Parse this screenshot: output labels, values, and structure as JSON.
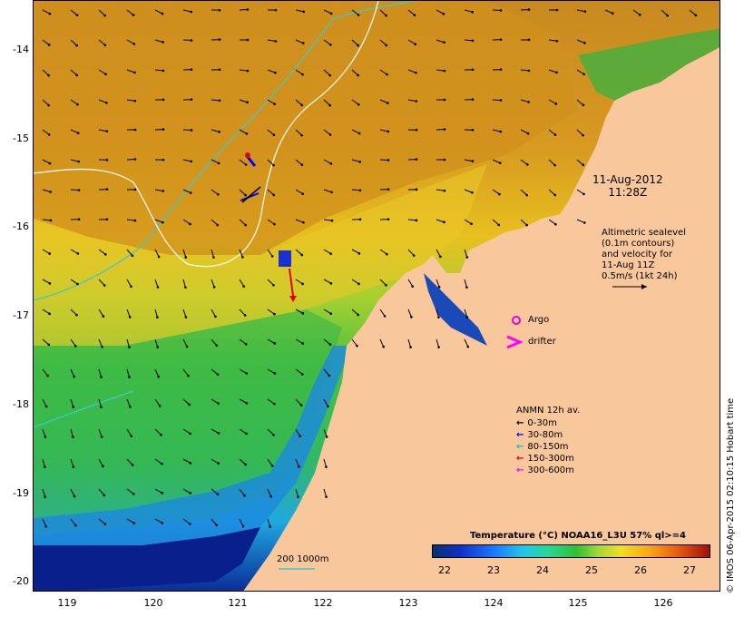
{
  "map": {
    "lat_labels": [
      "-14",
      "-15",
      "-16",
      "-17",
      "-18",
      "-19",
      "-20"
    ],
    "lon_labels": [
      "119",
      "120",
      "121",
      "122",
      "123",
      "124",
      "125",
      "126"
    ]
  },
  "annotations": {
    "date_line1": "11-Aug-2012",
    "date_line2": "11:28Z",
    "altimetry_lines": [
      "Altimetric sealevel",
      "(0.1m contours)",
      "and velocity for",
      "11-Aug 11Z",
      "0.5m/s (1kt 24h)"
    ],
    "argo_label": "Argo",
    "drifter_label": "drifter",
    "depth_contour_label": "200  1000m"
  },
  "anmn_legend": {
    "title": "ANMN 12h av.",
    "items": [
      {
        "label": "0-30m",
        "color": "#000000"
      },
      {
        "label": "30-80m",
        "color": "#0000ff"
      },
      {
        "label": "80-150m",
        "color": "#00c8c8"
      },
      {
        "label": "150-300m",
        "color": "#e00000"
      },
      {
        "label": "300-600m",
        "color": "#ff00ff"
      }
    ]
  },
  "colorbar": {
    "title": "Temperature (°C) NOAA16_L3U 57% ql>=4",
    "ticks": [
      "22",
      "23",
      "24",
      "25",
      "26",
      "27"
    ]
  },
  "footer": {
    "stamp": "© IMOS 06-Apr-2015 02:10:15 Hobart time"
  },
  "colors": {
    "land": "#f8c89c",
    "warm_sst": "#d48a18",
    "mid_sst": "#f0c818",
    "cool_sst": "#40c040",
    "cold_sst": "#1060d8",
    "deep_cold": "#08208c",
    "contour_200m": "#40c8c8",
    "contour_1000m": "#ffffff"
  }
}
